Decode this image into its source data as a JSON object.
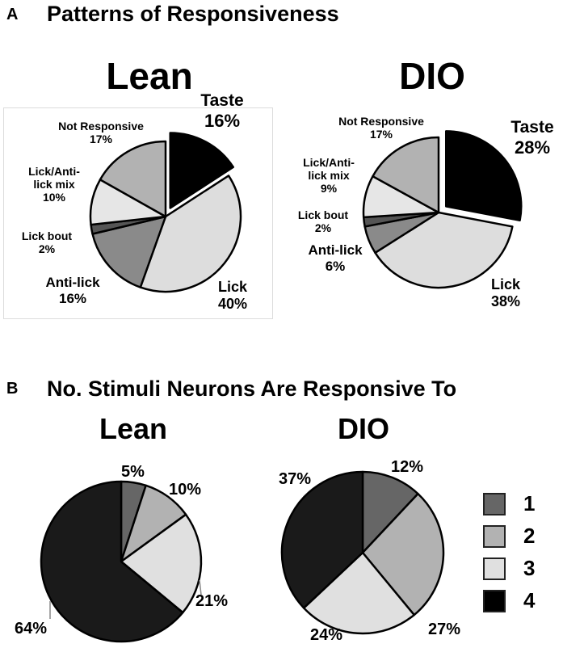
{
  "panel_a": {
    "letter": "A",
    "title": "Patterns of Responsiveness"
  },
  "panel_b": {
    "letter": "B",
    "title": "No. Stimuli Neurons Are Responsive To"
  },
  "chart_data": [
    {
      "type": "pie",
      "panel": "A",
      "title": "Lean",
      "slices": [
        {
          "name": "Taste",
          "value": 16,
          "label": "16%",
          "color": "#000000",
          "exploded": true
        },
        {
          "name": "Lick",
          "value": 40,
          "label": "40%",
          "color": "#dddddd"
        },
        {
          "name": "Anti-lick",
          "value": 16,
          "label": "16%",
          "color": "#8a8a8a"
        },
        {
          "name": "Lick bout",
          "value": 2,
          "label": "2%",
          "color": "#555555"
        },
        {
          "name": "Lick/Anti-lick mix",
          "value": 10,
          "label": "10%",
          "color": "#e6e6e6"
        },
        {
          "name": "Not Responsive",
          "value": 17,
          "label": "17%",
          "color": "#b2b2b2"
        }
      ]
    },
    {
      "type": "pie",
      "panel": "A",
      "title": "DIO",
      "slices": [
        {
          "name": "Taste",
          "value": 28,
          "label": "28%",
          "color": "#000000",
          "exploded": true
        },
        {
          "name": "Lick",
          "value": 38,
          "label": "38%",
          "color": "#dddddd"
        },
        {
          "name": "Anti-lick",
          "value": 6,
          "label": "6%",
          "color": "#8a8a8a"
        },
        {
          "name": "Lick bout",
          "value": 2,
          "label": "2%",
          "color": "#555555"
        },
        {
          "name": "Lick/Anti-lick mix",
          "value": 9,
          "label": "9%",
          "color": "#e6e6e6"
        },
        {
          "name": "Not Responsive",
          "value": 17,
          "label": "17%",
          "color": "#b2b2b2"
        }
      ]
    },
    {
      "type": "pie",
      "panel": "B",
      "title": "Lean",
      "slices": [
        {
          "name": "1",
          "value": 5,
          "label": "5%",
          "color": "#666666"
        },
        {
          "name": "2",
          "value": 10,
          "label": "10%",
          "color": "#b2b2b2"
        },
        {
          "name": "3",
          "value": 21,
          "label": "21%",
          "color": "#e0e0e0"
        },
        {
          "name": "4",
          "value": 64,
          "label": "64%",
          "color": "#1a1a1a"
        }
      ]
    },
    {
      "type": "pie",
      "panel": "B",
      "title": "DIO",
      "slices": [
        {
          "name": "1",
          "value": 12,
          "label": "12%",
          "color": "#666666"
        },
        {
          "name": "2",
          "value": 27,
          "label": "27%",
          "color": "#b2b2b2"
        },
        {
          "name": "3",
          "value": 24,
          "label": "24%",
          "color": "#e0e0e0"
        },
        {
          "name": "4",
          "value": 37,
          "label": "37%",
          "color": "#1a1a1a"
        }
      ]
    }
  ],
  "legend": {
    "placement": "right",
    "items": [
      {
        "label": "1",
        "color": "#666666"
      },
      {
        "label": "2",
        "color": "#b2b2b2"
      },
      {
        "label": "3",
        "color": "#e0e0e0"
      },
      {
        "label": "4",
        "color": "#000000"
      }
    ]
  }
}
